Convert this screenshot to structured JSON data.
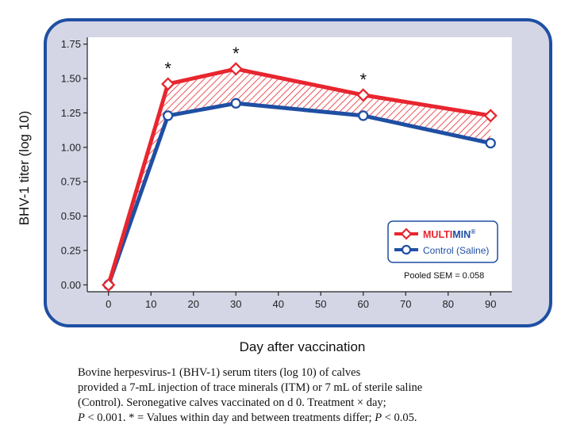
{
  "chart_data": {
    "type": "line",
    "xlabel": "Day after vaccination",
    "ylabel": "BHV-1 titer (log 10)",
    "xlim": [
      -5,
      95
    ],
    "ylim": [
      -0.05,
      1.8
    ],
    "xticks": [
      0,
      10,
      20,
      30,
      40,
      50,
      60,
      70,
      80,
      90
    ],
    "yticks": [
      0,
      0.25,
      0.5,
      0.75,
      1.0,
      1.25,
      1.5,
      1.75
    ],
    "ytick_labels": [
      "0.00",
      "0.25",
      "0.50",
      "0.75",
      "1.00",
      "1.25",
      "1.50",
      "1.75"
    ],
    "series": [
      {
        "name": "MULTI",
        "name_suffix": "MIN",
        "trademark": "®",
        "color": "#e8262f",
        "marker": "diamond",
        "x": [
          0,
          14,
          30,
          60,
          90
        ],
        "y": [
          0.0,
          1.46,
          1.57,
          1.38,
          1.23
        ]
      },
      {
        "name": "Control (Saline)",
        "color": "#1f4fa3",
        "marker": "circle",
        "x": [
          0,
          14,
          30,
          60,
          90
        ],
        "y": [
          0.0,
          1.23,
          1.32,
          1.23,
          1.03
        ]
      }
    ],
    "significance": [
      {
        "x": 14,
        "label": "*"
      },
      {
        "x": 30,
        "label": "*"
      },
      {
        "x": 60,
        "label": "*"
      }
    ],
    "annotation": "Pooled SEM = 0.058",
    "legend_position": "bottom-right",
    "shaded_between_series": true
  },
  "colors": {
    "frame_border": "#1f4fa3",
    "frame_fill": "#d4d6e6",
    "plot_fill": "#ffffff"
  },
  "caption": {
    "line1": "Bovine herpesvirus-1 (BHV-1) serum titers (log 10) of calves",
    "line2": "provided a 7-mL injection of trace minerals (ITM) or 7 mL of sterile saline",
    "line3": "(Control). Seronegative calves vaccinated on d 0. Treatment × day;",
    "line4_p": "P",
    "line4_mid": " < 0.001. * = Values within day and between treatments differ; ",
    "line4_p2": "P",
    "line4_end": " < 0.05."
  }
}
